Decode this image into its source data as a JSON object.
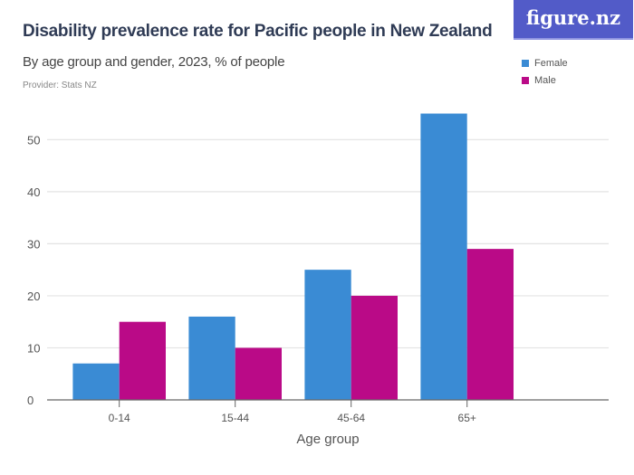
{
  "header": {
    "title": "Disability prevalence rate for Pacific people in New Zealand",
    "subtitle": "By age group and gender, 2023, % of people",
    "provider": "Provider: Stats NZ",
    "logo": "figure.nz"
  },
  "colors": {
    "female": "#3a8bd4",
    "male": "#ba0a87"
  },
  "chart_data": {
    "type": "bar",
    "title": "Disability prevalence rate for Pacific people in New Zealand",
    "subtitle": "By age group and gender, 2023, % of people",
    "xlabel": "Age group",
    "ylabel": "",
    "categories": [
      "0-14",
      "15-44",
      "45-64",
      "65+"
    ],
    "series": [
      {
        "name": "Female",
        "values": [
          7,
          16,
          25,
          55
        ]
      },
      {
        "name": "Male",
        "values": [
          15,
          10,
          20,
          29
        ]
      }
    ],
    "ylim": [
      0,
      55
    ],
    "yticks": [
      0,
      10,
      20,
      30,
      40,
      50
    ],
    "grid": true,
    "legend": "top-right"
  }
}
